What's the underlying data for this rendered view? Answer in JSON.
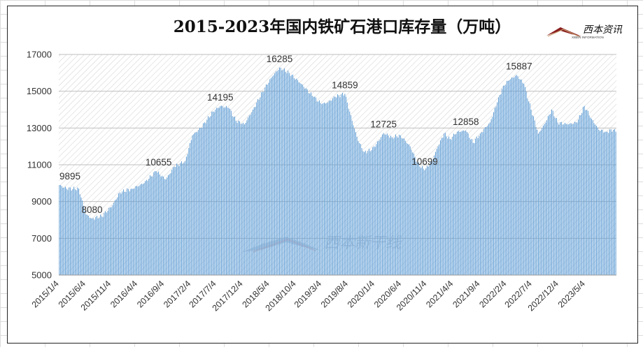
{
  "chart_data": {
    "type": "bar",
    "title": "2015-2023年国内铁矿石港口库存量（万吨）",
    "xlabel": "",
    "ylabel": "",
    "ylim": [
      5000,
      17000
    ],
    "yticks": [
      5000,
      7000,
      9000,
      11000,
      13000,
      15000,
      17000
    ],
    "grid": true,
    "x_tick_labels": [
      "2015/1/4",
      "2015/6/4",
      "2015/11/4",
      "2016/4/4",
      "2016/9/4",
      "2017/2/4",
      "2017/7/4",
      "2017/12/4",
      "2018/5/4",
      "2018/10/4",
      "2019/3/4",
      "2019/8/4",
      "2020/1/4",
      "2020/6/4",
      "2020/11/4",
      "2021/4/4",
      "2021/9/4",
      "2022/2/4",
      "2022/7/4",
      "2022/12/4",
      "2023/5/4"
    ],
    "series": [
      {
        "frequency": "weekly",
        "start": "2015/1/4",
        "color": "#5b9bd5",
        "anchors": [
          [
            0,
            9895
          ],
          [
            6,
            9700
          ],
          [
            16,
            9700
          ],
          [
            22,
            8300
          ],
          [
            27,
            8080
          ],
          [
            35,
            8200
          ],
          [
            44,
            8800
          ],
          [
            50,
            9500
          ],
          [
            60,
            9700
          ],
          [
            70,
            10000
          ],
          [
            80,
            10655
          ],
          [
            88,
            10200
          ],
          [
            95,
            10900
          ],
          [
            104,
            11200
          ],
          [
            110,
            12600
          ],
          [
            117,
            13000
          ],
          [
            127,
            13900
          ],
          [
            133,
            14195
          ],
          [
            140,
            14100
          ],
          [
            146,
            13400
          ],
          [
            153,
            13200
          ],
          [
            160,
            14000
          ],
          [
            170,
            15200
          ],
          [
            176,
            15800
          ],
          [
            182,
            16285
          ],
          [
            190,
            16000
          ],
          [
            200,
            15400
          ],
          [
            210,
            14700
          ],
          [
            217,
            14300
          ],
          [
            222,
            14400
          ],
          [
            228,
            14700
          ],
          [
            236,
            14859
          ],
          [
            242,
            13400
          ],
          [
            247,
            12300
          ],
          [
            252,
            11700
          ],
          [
            258,
            11800
          ],
          [
            264,
            12300
          ],
          [
            268,
            12725
          ],
          [
            275,
            12500
          ],
          [
            282,
            12600
          ],
          [
            290,
            12000
          ],
          [
            296,
            11100
          ],
          [
            302,
            10699
          ],
          [
            308,
            11200
          ],
          [
            313,
            12000
          ],
          [
            318,
            12700
          ],
          [
            323,
            12400
          ],
          [
            329,
            12800
          ],
          [
            336,
            12858
          ],
          [
            342,
            12200
          ],
          [
            348,
            12700
          ],
          [
            356,
            13300
          ],
          [
            362,
            14400
          ],
          [
            367,
            15300
          ],
          [
            372,
            15600
          ],
          [
            378,
            15887
          ],
          [
            384,
            15400
          ],
          [
            390,
            14000
          ],
          [
            396,
            12700
          ],
          [
            402,
            13300
          ],
          [
            407,
            14000
          ],
          [
            412,
            13300
          ],
          [
            420,
            13200
          ],
          [
            428,
            13300
          ],
          [
            434,
            14200
          ],
          [
            440,
            13500
          ],
          [
            446,
            12900
          ],
          [
            452,
            12800
          ],
          [
            458,
            12900
          ],
          [
            460,
            12800
          ]
        ]
      }
    ],
    "annotations": [
      {
        "x": "2015/1/4",
        "value": "9895"
      },
      {
        "x": "2015/7/12",
        "value": "8080"
      },
      {
        "x": "2016/7/31",
        "value": "10655"
      },
      {
        "x": "2017/7/23",
        "value": "14195"
      },
      {
        "x": "2018/7/1",
        "value": "16285"
      },
      {
        "x": "2019/7/14",
        "value": "14859"
      },
      {
        "x": "2020/2/23",
        "value": "12725"
      },
      {
        "x": "2020/10/18",
        "value": "10699"
      },
      {
        "x": "2021/6/13",
        "value": "12858"
      },
      {
        "x": "2022/4/17",
        "value": "15887"
      }
    ]
  },
  "logo": {
    "text": "西本资讯",
    "subtext": "XIBEN INFORMATION"
  },
  "watermark": {
    "text": "西本新干线"
  }
}
